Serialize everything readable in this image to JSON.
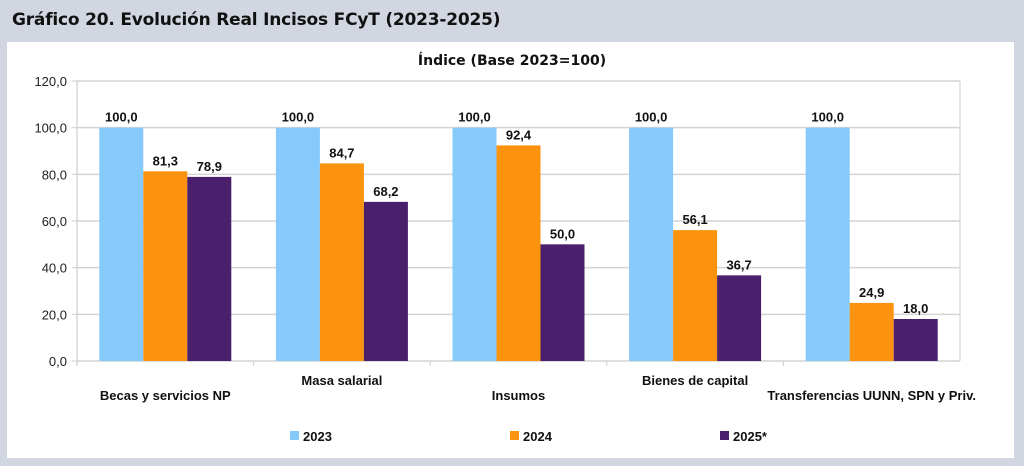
{
  "figure_title": "Gráfico 20. Evolución Real Incisos FCyT (2023-2025)",
  "chart_data": {
    "type": "bar",
    "title": "Índice (Base 2023=100)",
    "xlabel": "",
    "ylabel": "",
    "ylim": [
      0,
      120
    ],
    "yticks": [
      0,
      20,
      40,
      60,
      80,
      100,
      120
    ],
    "ytick_labels": [
      "0,0",
      "20,0",
      "40,0",
      "60,0",
      "80,0",
      "100,0",
      "120,0"
    ],
    "grid": true,
    "legend_position": "bottom",
    "categories": [
      "Becas y servicios NP",
      "Masa salarial",
      "Insumos",
      "Bienes de capital",
      "Transferencias UUNN, SPN y Priv."
    ],
    "series": [
      {
        "name": "2023",
        "color": "#86c9fb",
        "values": [
          100.0,
          100.0,
          100.0,
          100.0,
          100.0
        ],
        "labels": [
          "100,0",
          "100,0",
          "100,0",
          "100,0",
          "100,0"
        ]
      },
      {
        "name": "2024",
        "color": "#fb930f",
        "values": [
          81.3,
          84.7,
          92.4,
          56.1,
          24.9
        ],
        "labels": [
          "81,3",
          "84,7",
          "92,4",
          "56,1",
          "24,9"
        ]
      },
      {
        "name": "2025*",
        "color": "#4a1f6b",
        "values": [
          78.9,
          68.2,
          50.0,
          36.7,
          18.0
        ],
        "labels": [
          "78,9",
          "68,2",
          "50,0",
          "36,7",
          "18,0"
        ]
      }
    ]
  }
}
